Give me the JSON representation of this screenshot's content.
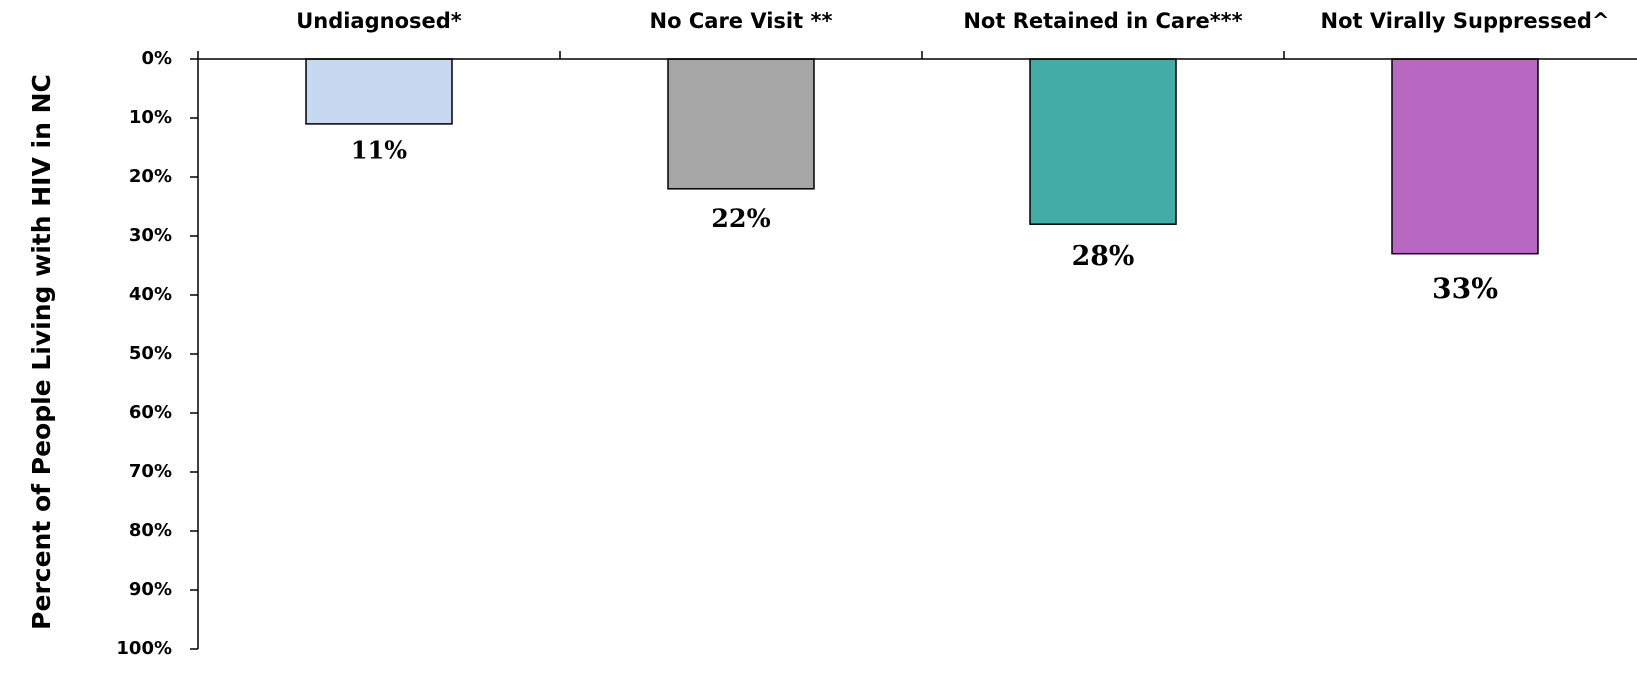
{
  "chart_data": {
    "type": "bar",
    "orientation": "vertical-inverted",
    "categories": [
      "Undiagnosed*",
      "No Care Visit **",
      "Not Retained in Care***",
      "Not Virally Suppressed^"
    ],
    "values": [
      11,
      22,
      28,
      33
    ],
    "value_labels": [
      "11%",
      "22%",
      "28%",
      "33%"
    ],
    "colors": [
      "#c6d9f1",
      "#a6a6a6",
      "#43aca6",
      "#b968c1"
    ],
    "title": "",
    "xlabel": "",
    "ylabel": "Percent of People Living with HIV in NC",
    "ylim": [
      0,
      100
    ],
    "y_inverted": true,
    "y_ticks": [
      0,
      10,
      20,
      30,
      40,
      50,
      60,
      70,
      80,
      90,
      100
    ],
    "y_tick_labels": [
      "0%",
      "10%",
      "20%",
      "30%",
      "40%",
      "50%",
      "60%",
      "70%",
      "80%",
      "90%",
      "100%"
    ],
    "x_axis_position": "top",
    "grid": false,
    "legend": "none"
  }
}
